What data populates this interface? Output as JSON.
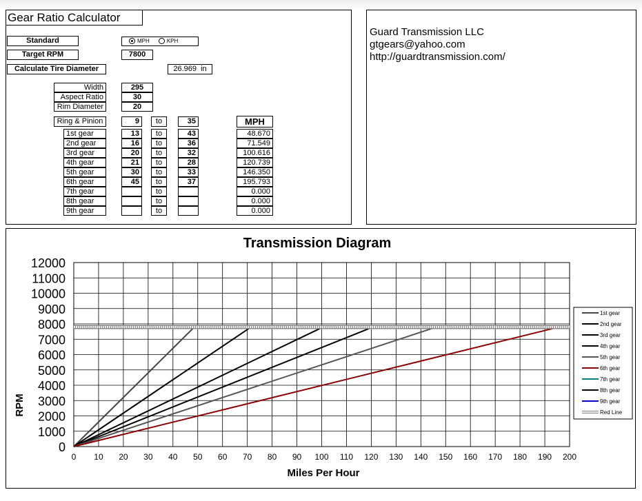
{
  "calculator": {
    "title": "Gear Ratio Calculator",
    "standard_label": "Standard",
    "units": {
      "mph_label": "MPH",
      "kph_label": "KPH",
      "selected": "MPH"
    },
    "target_rpm_label": "Target RPM",
    "target_rpm": "7800",
    "tire_diameter_label": "Calculate Tire Diameter",
    "tire_diameter_value": "26.969  in",
    "width_label": "Width",
    "width": "295",
    "aspect_label": "Aspect Ratio",
    "aspect": "30",
    "rim_label": "Rim Diameter",
    "rim": "20",
    "ring_pinion_label": "Ring & Pinion",
    "ring_pinion_a": "9",
    "ring_pinion_b": "35",
    "to_label": "to",
    "speed_header": "MPH",
    "gears": [
      {
        "label": "1st gear",
        "a": "13",
        "b": "43",
        "speed": "48.670"
      },
      {
        "label": "2nd gear",
        "a": "16",
        "b": "36",
        "speed": "71.549"
      },
      {
        "label": "3rd gear",
        "a": "20",
        "b": "32",
        "speed": "100.616"
      },
      {
        "label": "4th gear",
        "a": "21",
        "b": "28",
        "speed": "120.739"
      },
      {
        "label": "5th gear",
        "a": "30",
        "b": "33",
        "speed": "146.350"
      },
      {
        "label": "6th gear",
        "a": "45",
        "b": "37",
        "speed": "195.793"
      },
      {
        "label": "7th gear",
        "a": "",
        "b": "",
        "speed": "0.000"
      },
      {
        "label": "8th gear",
        "a": "",
        "b": "",
        "speed": "0.000"
      },
      {
        "label": "9th gear",
        "a": "",
        "b": "",
        "speed": "0.000"
      }
    ]
  },
  "company": {
    "name": "Guard Transmission LLC",
    "email": "gtgears@yahoo.com",
    "url": "http://guardtransmission.com/"
  },
  "chart_data": {
    "type": "line",
    "title": "Transmission Diagram",
    "xlabel": "Miles Per Hour",
    "ylabel": "RPM",
    "xlim": [
      0,
      200
    ],
    "ylim": [
      0,
      12000
    ],
    "x_ticks": [
      0,
      10,
      20,
      30,
      40,
      50,
      60,
      70,
      80,
      90,
      100,
      110,
      120,
      130,
      140,
      150,
      160,
      170,
      180,
      190,
      200
    ],
    "y_ticks": [
      0,
      1000,
      2000,
      3000,
      4000,
      5000,
      6000,
      7000,
      8000,
      9000,
      10000,
      11000,
      12000
    ],
    "grid": true,
    "legend_position": "right",
    "series": [
      {
        "name": "1st gear",
        "color": "#444444",
        "x": [
          0,
          48.67
        ],
        "y": [
          0,
          7800
        ]
      },
      {
        "name": "2nd gear",
        "color": "#000000",
        "x": [
          0,
          71.549
        ],
        "y": [
          0,
          7800
        ]
      },
      {
        "name": "3rd gear",
        "color": "#000000",
        "x": [
          0,
          100.616
        ],
        "y": [
          0,
          7800
        ]
      },
      {
        "name": "4th gear",
        "color": "#000000",
        "x": [
          0,
          120.739
        ],
        "y": [
          0,
          7800
        ]
      },
      {
        "name": "5th gear",
        "color": "#555555",
        "x": [
          0,
          146.35
        ],
        "y": [
          0,
          7800
        ]
      },
      {
        "name": "6th gear",
        "color": "#8b0000",
        "x": [
          0,
          195.793
        ],
        "y": [
          0,
          7800
        ]
      },
      {
        "name": "7th gear",
        "color": "#008080",
        "x": [],
        "y": []
      },
      {
        "name": "8th gear",
        "color": "#000000",
        "x": [],
        "y": []
      },
      {
        "name": "9th gear",
        "color": "#0000cc",
        "x": [],
        "y": []
      },
      {
        "name": "Red Line",
        "color": "#aaaaaa",
        "x": [
          0,
          200
        ],
        "y": [
          7800,
          7800
        ]
      }
    ]
  }
}
